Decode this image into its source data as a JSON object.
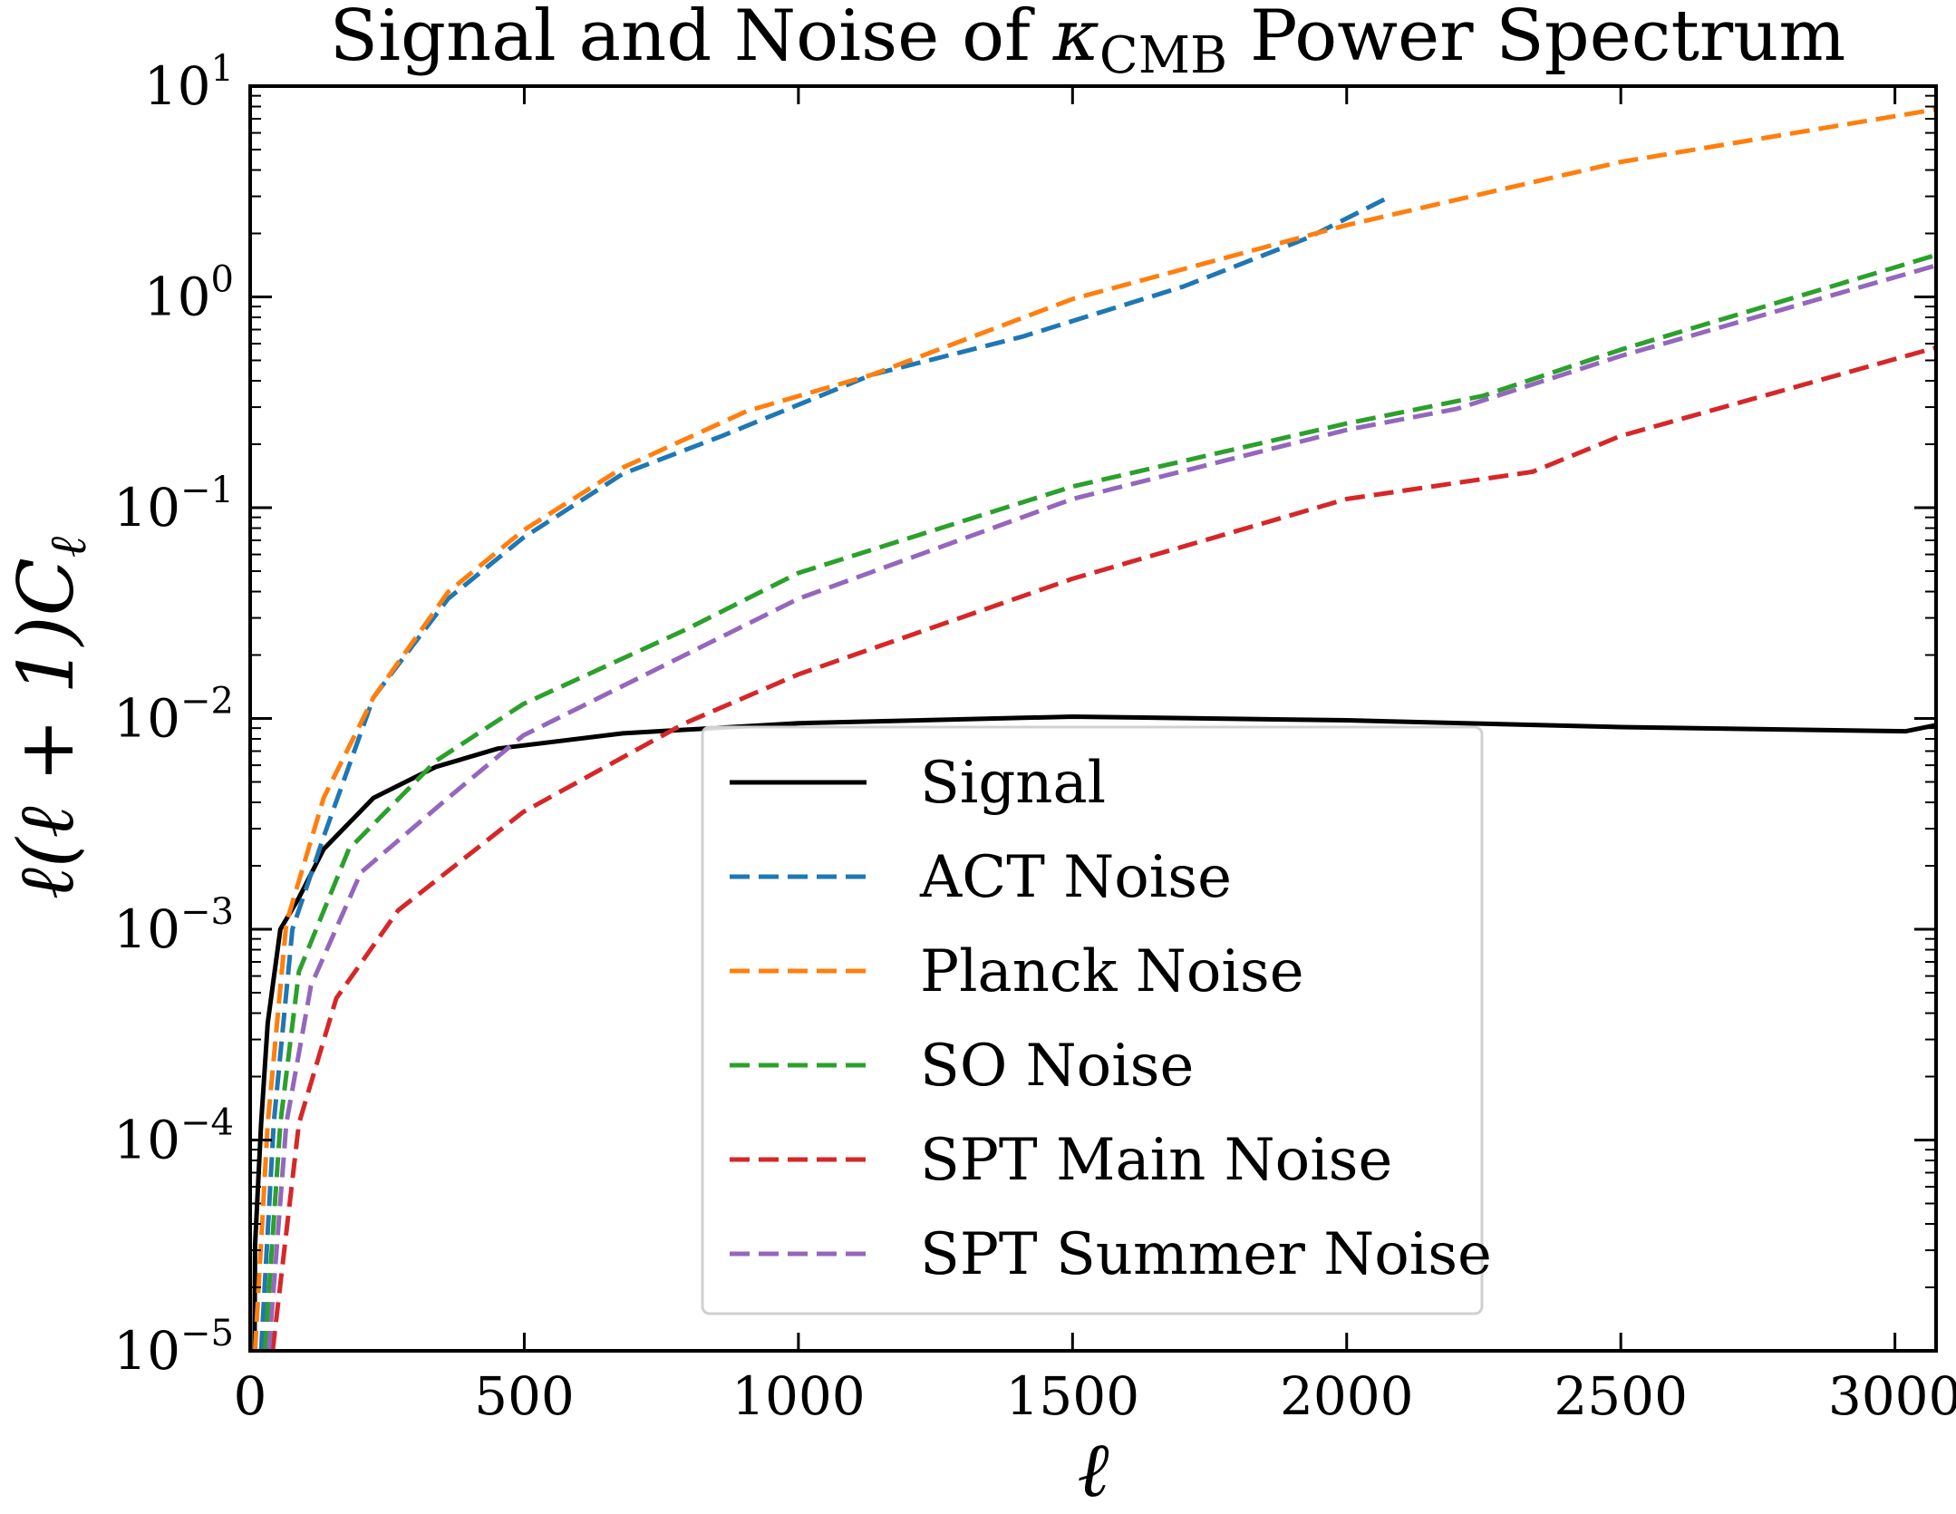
{
  "chart_data": {
    "type": "line",
    "title": {
      "prefix": "Signal and Noise of ",
      "symbol": "κ",
      "subscript": "CMB",
      "suffix": " Power Spectrum"
    },
    "xlabel": "ℓ",
    "ylabel": {
      "a": "ℓ(ℓ + 1)C",
      "sub": "ℓ"
    },
    "xscale": "linear",
    "yscale": "log",
    "xlim": [
      0,
      3075
    ],
    "ylim": [
      1e-05,
      10
    ],
    "xticks": [
      0,
      500,
      1000,
      1500,
      2000,
      2500,
      3000
    ],
    "xtick_labels": [
      "0",
      "500",
      "1000",
      "1500",
      "2000",
      "2500",
      "3000"
    ],
    "yticks": [
      -5,
      -4,
      -3,
      -2,
      -1,
      0,
      1
    ],
    "ytick_base": "10",
    "ytick_exponents": [
      "−5",
      "−4",
      "−3",
      "−2",
      "−1",
      "0",
      "1"
    ],
    "legend_position": "lower-center",
    "series": [
      {
        "name": "Signal",
        "color": "#000000",
        "style": "solid",
        "x": [
          8,
          9,
          20,
          32,
          55,
          89,
          134,
          225,
          339,
          452,
          680,
          1000,
          1500,
          2000,
          2500,
          3020,
          3075
        ],
        "y": [
          1e-05,
          3.16e-05,
          0.00012,
          0.00036,
          0.001,
          0.00141,
          0.0024,
          0.0042,
          0.0059,
          0.0072,
          0.0085,
          0.0095,
          0.0102,
          0.0098,
          0.0091,
          0.0087,
          0.0093
        ]
      },
      {
        "name": "ACT Noise",
        "color": "#1f77b4",
        "style": "dashed",
        "x": [
          20,
          43,
          77,
          134,
          225,
          361,
          498,
          680,
          861,
          1134,
          1407,
          1702,
          1930,
          2082
        ],
        "y": [
          1e-05,
          0.00012,
          0.001,
          0.00275,
          0.0126,
          0.037,
          0.072,
          0.145,
          0.219,
          0.427,
          0.646,
          1.12,
          1.91,
          3.02
        ]
      },
      {
        "name": "Planck Noise",
        "color": "#ff7f0e",
        "style": "dashed",
        "x": [
          9,
          32,
          66,
          134,
          225,
          361,
          498,
          680,
          907,
          1134,
          1500,
          2000,
          2500,
          3075
        ],
        "y": [
          1e-05,
          0.00012,
          0.00107,
          0.0042,
          0.0126,
          0.0398,
          0.078,
          0.155,
          0.288,
          0.427,
          0.977,
          2.19,
          4.37,
          7.76
        ]
      },
      {
        "name": "SO Noise",
        "color": "#2ca02c",
        "style": "dashed",
        "x": [
          27,
          55,
          89,
          180,
          339,
          498,
          793,
          1000,
          1500,
          2000,
          2248,
          2500,
          3075
        ],
        "y": [
          1e-05,
          0.00012,
          0.00063,
          0.0024,
          0.0063,
          0.0117,
          0.0263,
          0.049,
          0.126,
          0.251,
          0.339,
          0.562,
          1.58
        ]
      },
      {
        "name": "SPT Main Noise",
        "color": "#d62728",
        "style": "dashed",
        "x": [
          41,
          89,
          157,
          270,
          498,
          793,
          1000,
          1500,
          2000,
          2339,
          2500,
          3075
        ],
        "y": [
          1e-05,
          0.00012,
          0.00047,
          0.00123,
          0.0036,
          0.0095,
          0.0162,
          0.046,
          0.11,
          0.148,
          0.219,
          0.575
        ]
      },
      {
        "name": "SPT Summer Noise",
        "color": "#9467bd",
        "style": "dashed",
        "x": [
          34,
          66,
          111,
          202,
          361,
          498,
          793,
          1000,
          1500,
          2000,
          2202,
          2500,
          3075
        ],
        "y": [
          1e-05,
          0.00012,
          0.00054,
          0.00186,
          0.0042,
          0.0083,
          0.02,
          0.037,
          0.11,
          0.234,
          0.295,
          0.525,
          1.41
        ]
      }
    ]
  }
}
